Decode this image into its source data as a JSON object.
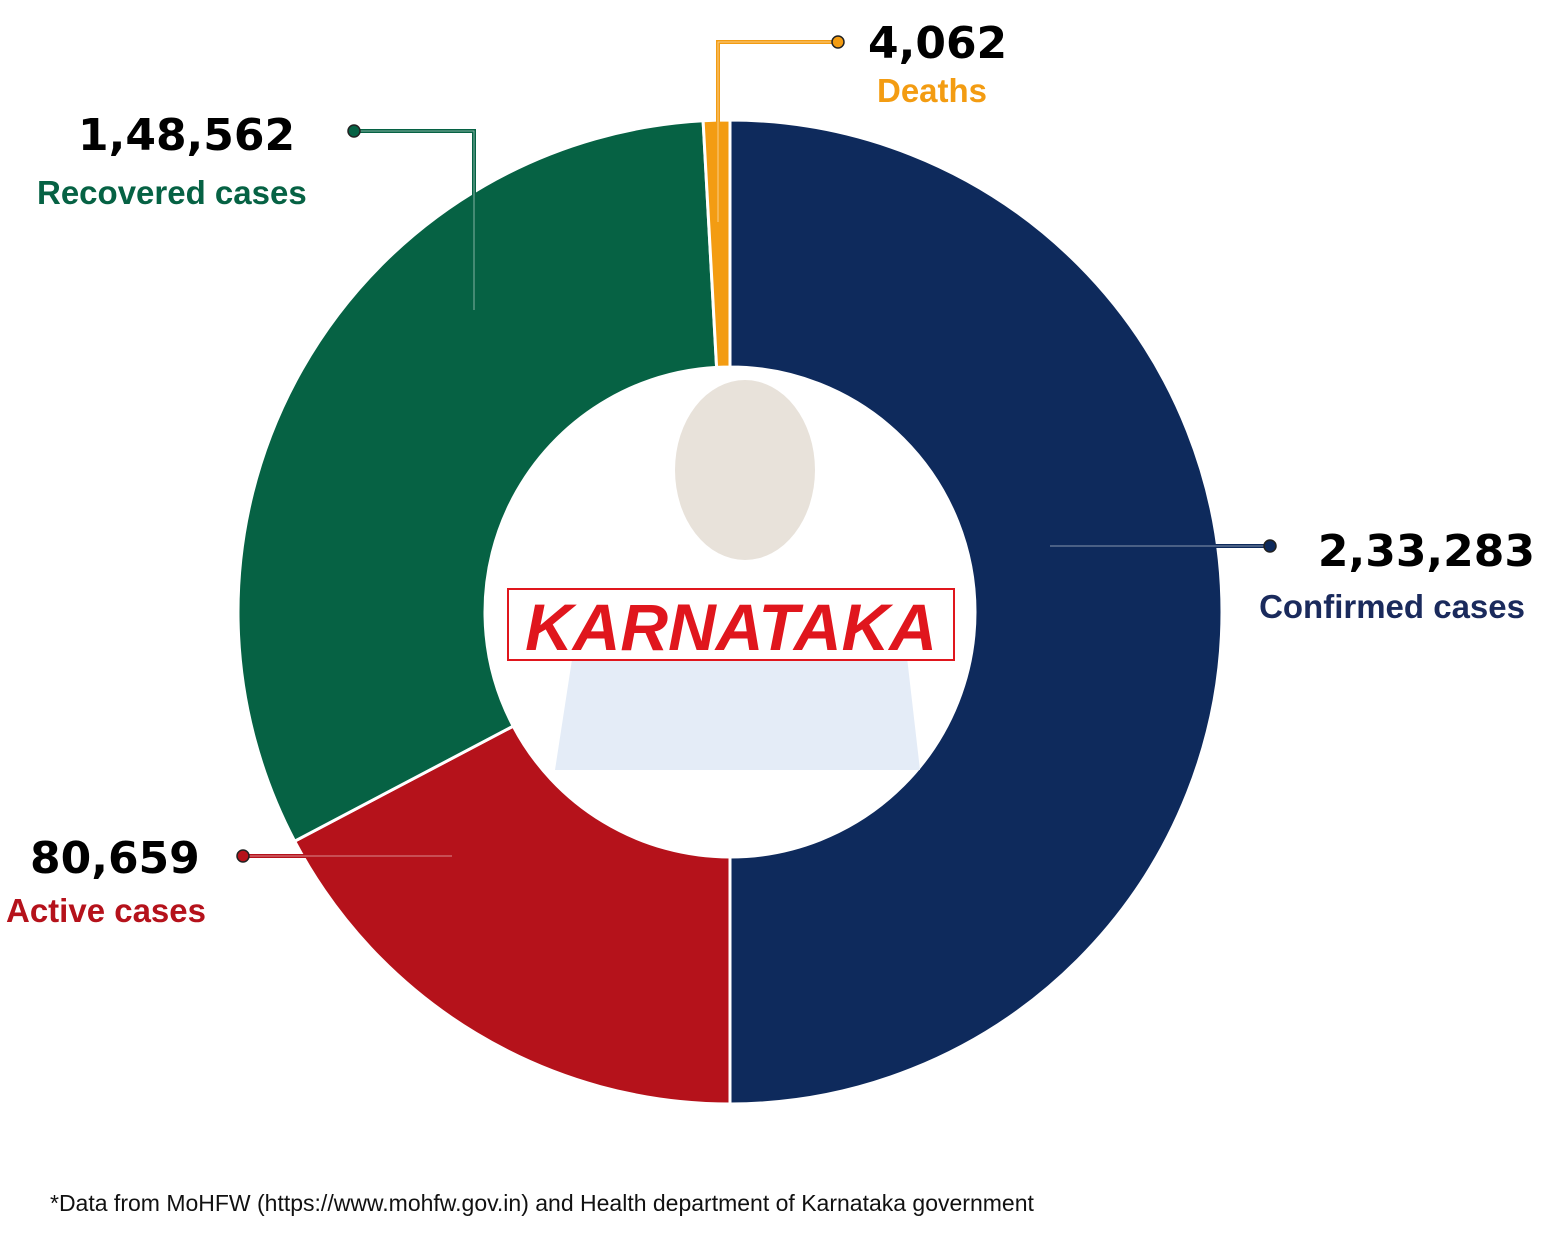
{
  "chart_data": {
    "type": "donut",
    "categories": [
      "Confirmed cases",
      "Active cases",
      "Recovered cases",
      "Deaths"
    ],
    "values": [
      233283,
      80659,
      148562,
      4062
    ],
    "value_labels": [
      "2,33,283",
      "80,659",
      "1,48,562",
      "4,062"
    ],
    "colors": [
      "#0e2a5c",
      "#b5121b",
      "#066244",
      "#f39c12"
    ],
    "center_label": "KARNATAKA"
  },
  "footnote": "*Data from MoHFW (https://www.mohfw.gov.in) and Health department of Karnataka government"
}
